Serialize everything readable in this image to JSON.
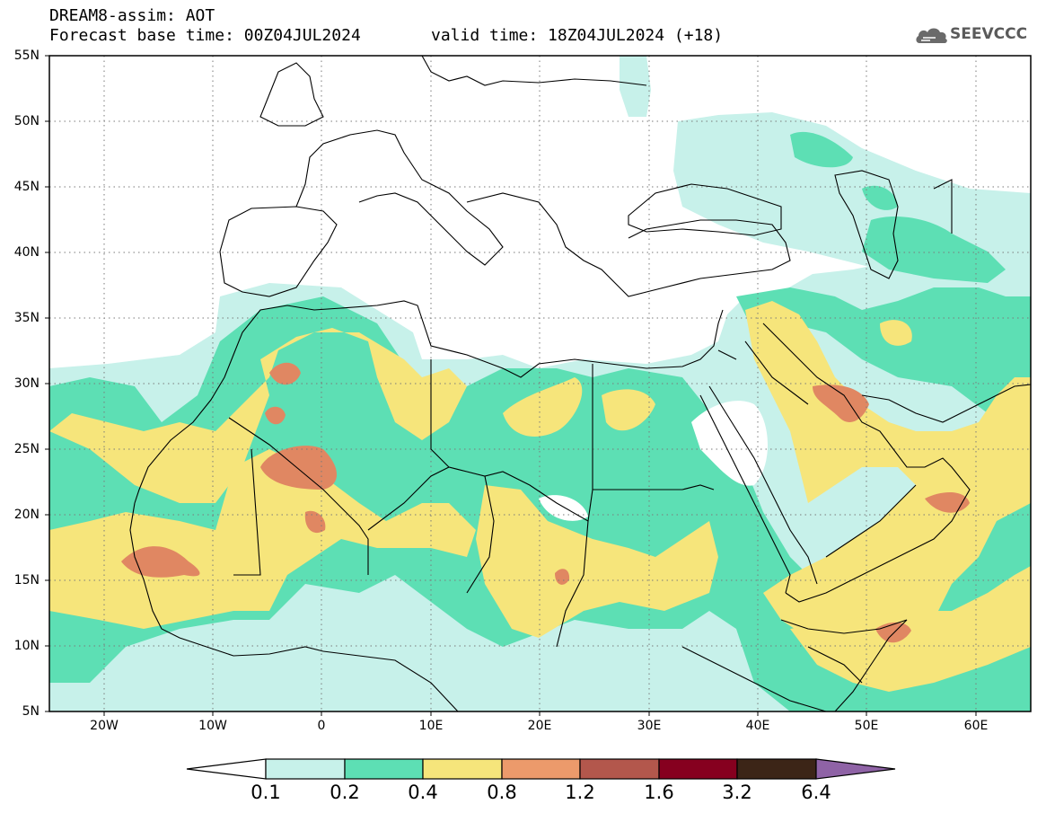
{
  "header": {
    "title": "DREAM8-assim: AOT",
    "base_time": "Forecast base time: 00Z04JUL2024",
    "valid_time": "valid time: 18Z04JUL2024 (+18)",
    "logo_text": "SEEVCCC",
    "logo_icon": "cloud-icon"
  },
  "map": {
    "projection": "lat-lon",
    "lon_range": [
      -25,
      65
    ],
    "lat_range": [
      5,
      55
    ],
    "grid": "dotted",
    "lat_labels": [
      "55N",
      "50N",
      "45N",
      "40N",
      "35N",
      "30N",
      "25N",
      "20N",
      "15N",
      "10N",
      "5N"
    ],
    "lon_labels": [
      "20W",
      "10W",
      "0",
      "10E",
      "20E",
      "30E",
      "40E",
      "50E",
      "60E"
    ]
  },
  "colorbar": {
    "levels": [
      "0.1",
      "0.2",
      "0.4",
      "0.8",
      "1.2",
      "1.6",
      "3.2",
      "6.4"
    ],
    "colors": [
      "#c7f1ea",
      "#5ddfb4",
      "#f6e57b",
      "#ec9a6b",
      "#b3574c",
      "#86001f",
      "#3c2517",
      "#8f63a6"
    ],
    "under_color": "#ffffff"
  },
  "palette": {
    "light": "#c7f1ea",
    "green": "#5ddfb4",
    "yellow": "#f6e57b",
    "orange": "#ec9a6b",
    "red": "#c86050",
    "coast": "#000000",
    "grid": "#7a7a7a"
  }
}
